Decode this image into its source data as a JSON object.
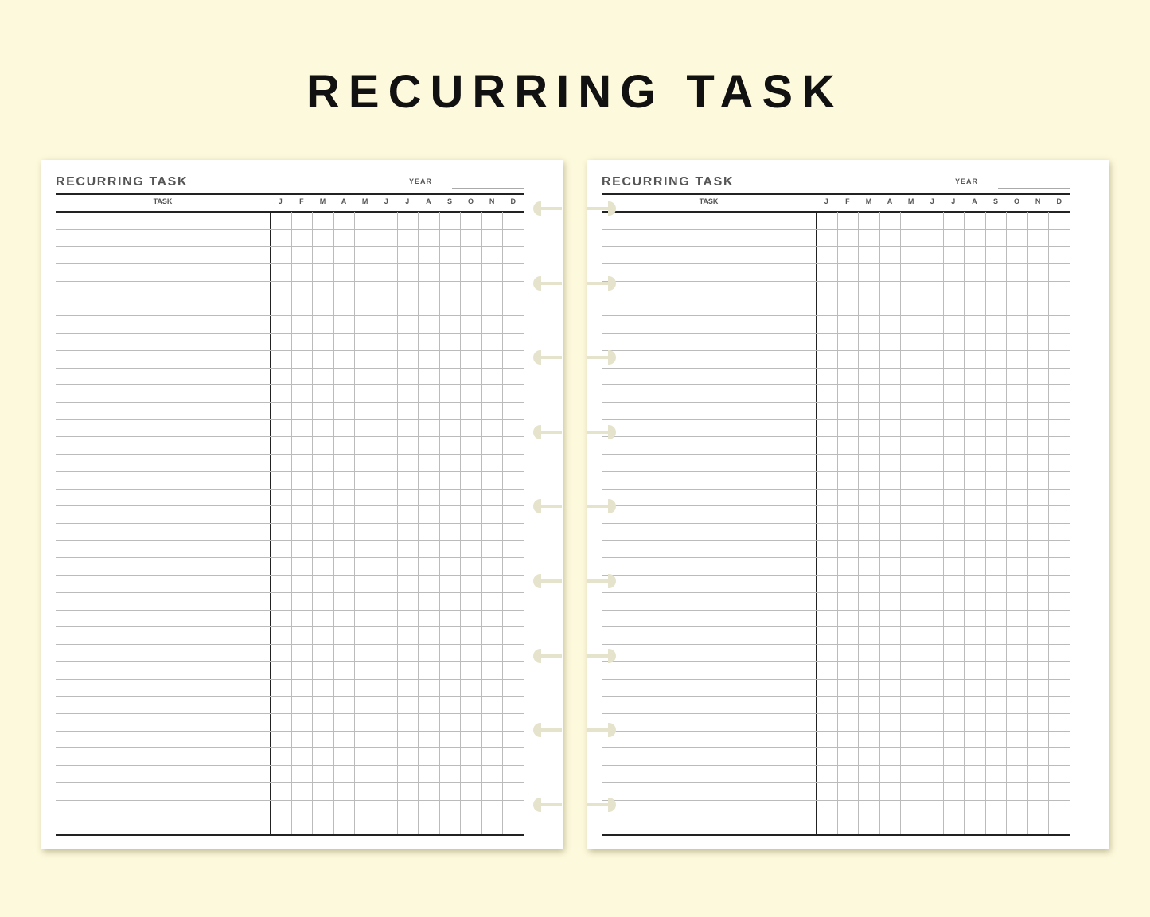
{
  "title": "RECURRING TASK",
  "pages": [
    {
      "title": "RECURRING TASK",
      "year_label": "YEAR",
      "task_header": "TASK",
      "months": [
        "J",
        "F",
        "M",
        "A",
        "M",
        "J",
        "J",
        "A",
        "S",
        "O",
        "N",
        "D"
      ],
      "side": "left"
    },
    {
      "title": "RECURRING TASK",
      "year_label": "YEAR",
      "task_header": "TASK",
      "months": [
        "J",
        "F",
        "M",
        "A",
        "M",
        "J",
        "J",
        "A",
        "S",
        "O",
        "N",
        "D"
      ],
      "side": "right"
    }
  ],
  "row_count": 36,
  "disc_count": 9,
  "colors": {
    "background": "#fdf9dc",
    "page": "#ffffff",
    "disc": "#e6e3cc"
  }
}
